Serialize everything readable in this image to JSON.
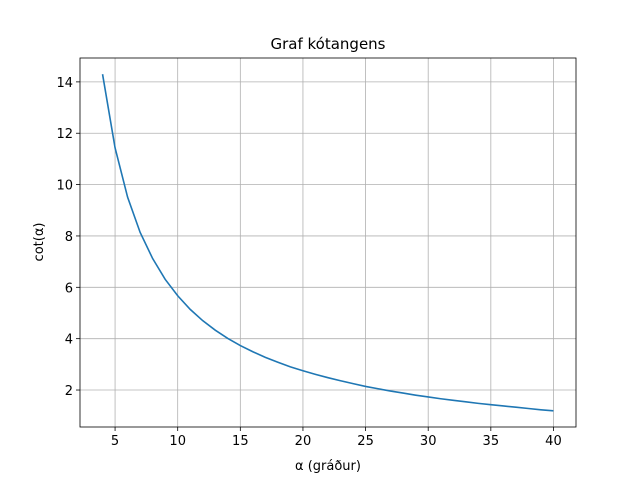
{
  "chart_data": {
    "type": "line",
    "title": "Graf kótangens",
    "x_label": "α (gráður)",
    "y_label": "cot(α)",
    "x": [
      4,
      5,
      6,
      7,
      8,
      9,
      10,
      11,
      12,
      13,
      14,
      15,
      16,
      17,
      18,
      19,
      20,
      21,
      22,
      23,
      24,
      25,
      26,
      27,
      28,
      29,
      30,
      31,
      32,
      33,
      34,
      35,
      36,
      37,
      38,
      39,
      40
    ],
    "values": [
      14.3,
      11.43,
      9.51,
      8.14,
      7.12,
      6.31,
      5.67,
      5.14,
      4.7,
      4.33,
      4.01,
      3.73,
      3.49,
      3.27,
      3.08,
      2.9,
      2.75,
      2.61,
      2.48,
      2.36,
      2.25,
      2.14,
      2.05,
      1.96,
      1.88,
      1.8,
      1.73,
      1.66,
      1.6,
      1.54,
      1.48,
      1.43,
      1.38,
      1.33,
      1.28,
      1.23,
      1.19
    ],
    "color": "#1f77b4",
    "xlim": [
      2.2,
      41.8
    ],
    "xticks": [
      5,
      10,
      15,
      20,
      25,
      30,
      35,
      40
    ],
    "ylim": [
      0.56,
      14.93
    ],
    "yticks": [
      2,
      4,
      6,
      8,
      10,
      12,
      14
    ],
    "grid": true
  }
}
